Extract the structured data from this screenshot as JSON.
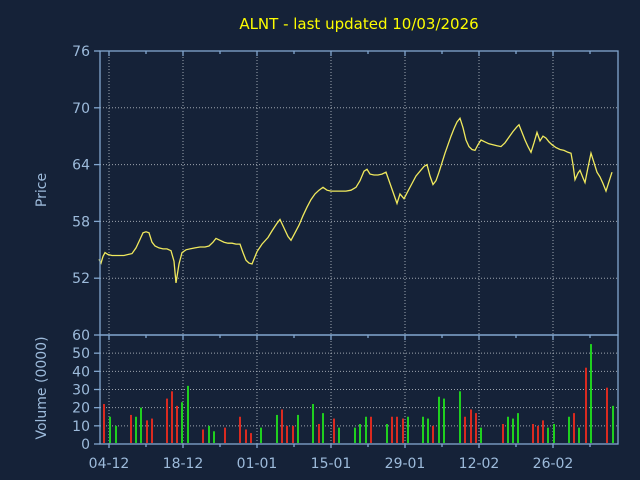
{
  "title": {
    "text": "ALNT - last updated 10/03/2026"
  },
  "colors": {
    "background": "#152238",
    "axis": "#82a7cf",
    "grid": "#b5bcc4",
    "tick_label": "#9dbbdb",
    "title": "#fdfd00",
    "price_line": "#f0e95d",
    "volume_up": "#1fcf1f",
    "volume_down": "#da2a20"
  },
  "chart_data": [
    {
      "type": "line",
      "panel": "price",
      "title": "ALNT - last updated 10/03/2026",
      "ylabel": "Price",
      "yticks": [
        76,
        70,
        64,
        58,
        52
      ],
      "ylim": [
        46,
        76
      ],
      "grid": true,
      "xtick_labels": [
        "04-12",
        "18-12",
        "01-01",
        "15-01",
        "29-01",
        "12-02",
        "26-02"
      ],
      "series": [
        {
          "name": "ALNT close price",
          "points": [
            [
              99,
              54.0
            ],
            [
              101,
              53.6
            ],
            [
              103,
              54.3
            ],
            [
              105,
              54.7
            ],
            [
              108,
              54.5
            ],
            [
              112,
              54.4
            ],
            [
              116,
              54.4
            ],
            [
              120,
              54.4
            ],
            [
              124,
              54.4
            ],
            [
              128,
              54.5
            ],
            [
              132,
              54.6
            ],
            [
              136,
              55.2
            ],
            [
              140,
              56.1
            ],
            [
              143,
              56.8
            ],
            [
              146,
              56.9
            ],
            [
              149,
              56.8
            ],
            [
              152,
              55.8
            ],
            [
              155,
              55.4
            ],
            [
              159,
              55.2
            ],
            [
              163,
              55.1
            ],
            [
              167,
              55.1
            ],
            [
              171,
              54.9
            ],
            [
              174,
              53.8
            ],
            [
              176,
              51.5
            ],
            [
              179,
              53.5
            ],
            [
              182,
              54.7
            ],
            [
              186,
              55.0
            ],
            [
              190,
              55.1
            ],
            [
              195,
              55.2
            ],
            [
              200,
              55.3
            ],
            [
              205,
              55.3
            ],
            [
              209,
              55.4
            ],
            [
              213,
              55.8
            ],
            [
              216,
              56.2
            ],
            [
              220,
              56.0
            ],
            [
              224,
              55.8
            ],
            [
              228,
              55.7
            ],
            [
              232,
              55.7
            ],
            [
              236,
              55.6
            ],
            [
              240,
              55.6
            ],
            [
              243,
              54.7
            ],
            [
              246,
              53.9
            ],
            [
              249,
              53.6
            ],
            [
              252,
              53.5
            ],
            [
              257,
              54.8
            ],
            [
              262,
              55.6
            ],
            [
              268,
              56.3
            ],
            [
              272,
              57.0
            ],
            [
              277,
              57.8
            ],
            [
              280,
              58.2
            ],
            [
              284,
              57.3
            ],
            [
              288,
              56.4
            ],
            [
              291,
              56.0
            ],
            [
              295,
              56.8
            ],
            [
              299,
              57.6
            ],
            [
              303,
              58.6
            ],
            [
              307,
              59.5
            ],
            [
              311,
              60.3
            ],
            [
              315,
              60.9
            ],
            [
              319,
              61.3
            ],
            [
              323,
              61.6
            ],
            [
              327,
              61.3
            ],
            [
              331,
              61.2
            ],
            [
              336,
              61.2
            ],
            [
              341,
              61.2
            ],
            [
              346,
              61.2
            ],
            [
              351,
              61.3
            ],
            [
              356,
              61.6
            ],
            [
              360,
              62.3
            ],
            [
              364,
              63.3
            ],
            [
              367,
              63.5
            ],
            [
              370,
              63.0
            ],
            [
              374,
              62.9
            ],
            [
              378,
              62.9
            ],
            [
              382,
              63.0
            ],
            [
              386,
              63.2
            ],
            [
              390,
              62.0
            ],
            [
              394,
              60.8
            ],
            [
              397,
              59.9
            ],
            [
              400,
              60.9
            ],
            [
              404,
              60.4
            ],
            [
              408,
              61.2
            ],
            [
              412,
              62.0
            ],
            [
              416,
              62.8
            ],
            [
              420,
              63.3
            ],
            [
              424,
              63.8
            ],
            [
              427,
              64.0
            ],
            [
              430,
              62.8
            ],
            [
              433,
              61.9
            ],
            [
              436,
              62.3
            ],
            [
              439,
              63.2
            ],
            [
              442,
              64.2
            ],
            [
              445,
              65.2
            ],
            [
              448,
              66.1
            ],
            [
              451,
              67.0
            ],
            [
              454,
              67.8
            ],
            [
              457,
              68.5
            ],
            [
              460,
              68.9
            ],
            [
              463,
              67.9
            ],
            [
              466,
              66.6
            ],
            [
              469,
              65.9
            ],
            [
              472,
              65.6
            ],
            [
              475,
              65.5
            ],
            [
              478,
              66.1
            ],
            [
              481,
              66.6
            ],
            [
              485,
              66.4
            ],
            [
              489,
              66.2
            ],
            [
              493,
              66.1
            ],
            [
              497,
              66.0
            ],
            [
              501,
              65.9
            ],
            [
              505,
              66.3
            ],
            [
              509,
              66.9
            ],
            [
              513,
              67.5
            ],
            [
              517,
              68.0
            ],
            [
              519,
              68.2
            ],
            [
              522,
              67.4
            ],
            [
              525,
              66.6
            ],
            [
              528,
              65.9
            ],
            [
              531,
              65.3
            ],
            [
              534,
              66.3
            ],
            [
              537,
              67.4
            ],
            [
              540,
              66.5
            ],
            [
              543,
              67.0
            ],
            [
              546,
              66.8
            ],
            [
              549,
              66.4
            ],
            [
              552,
              66.1
            ],
            [
              556,
              65.8
            ],
            [
              560,
              65.6
            ],
            [
              564,
              65.5
            ],
            [
              568,
              65.3
            ],
            [
              571,
              65.2
            ],
            [
              573,
              64.0
            ],
            [
              575,
              62.4
            ],
            [
              578,
              63.1
            ],
            [
              580,
              63.4
            ],
            [
              583,
              62.6
            ],
            [
              585,
              62.1
            ],
            [
              588,
              63.7
            ],
            [
              591,
              65.2
            ],
            [
              594,
              64.2
            ],
            [
              597,
              63.2
            ],
            [
              600,
              62.7
            ],
            [
              603,
              62.0
            ],
            [
              606,
              61.2
            ],
            [
              609,
              62.2
            ],
            [
              612,
              63.2
            ]
          ]
        }
      ]
    },
    {
      "type": "bar",
      "panel": "volume",
      "ylabel": "Volume (0000)",
      "yticks": [
        60,
        50,
        40,
        30,
        20,
        10,
        0
      ],
      "ylim": [
        0,
        60
      ],
      "grid": true,
      "up_color": "#1fcf1f",
      "down_color": "#da2a20",
      "bars": [
        [
          104,
          22,
          "d"
        ],
        [
          110,
          15,
          "u"
        ],
        [
          116,
          10,
          "u"
        ],
        [
          131,
          16,
          "d"
        ],
        [
          136,
          15,
          "u"
        ],
        [
          141,
          20,
          "u"
        ],
        [
          147,
          13,
          "d"
        ],
        [
          152,
          14,
          "d"
        ],
        [
          167,
          25,
          "d"
        ],
        [
          172,
          29,
          "d"
        ],
        [
          177,
          21,
          "d"
        ],
        [
          182,
          23,
          "u"
        ],
        [
          188,
          32,
          "u"
        ],
        [
          203,
          8,
          "d"
        ],
        [
          209,
          10,
          "u"
        ],
        [
          214,
          7,
          "u"
        ],
        [
          225,
          9,
          "d"
        ],
        [
          240,
          15,
          "d"
        ],
        [
          246,
          8,
          "d"
        ],
        [
          251,
          6,
          "d"
        ],
        [
          261,
          9,
          "u"
        ],
        [
          277,
          16,
          "u"
        ],
        [
          282,
          19,
          "d"
        ],
        [
          287,
          10,
          "d"
        ],
        [
          293,
          10,
          "d"
        ],
        [
          298,
          16,
          "u"
        ],
        [
          313,
          22,
          "u"
        ],
        [
          319,
          11,
          "d"
        ],
        [
          323,
          17,
          "u"
        ],
        [
          334,
          14,
          "d"
        ],
        [
          339,
          9,
          "u"
        ],
        [
          355,
          9,
          "u"
        ],
        [
          360,
          11,
          "u"
        ],
        [
          366,
          15,
          "u"
        ],
        [
          371,
          15,
          "d"
        ],
        [
          387,
          11,
          "u"
        ],
        [
          392,
          15,
          "d"
        ],
        [
          397,
          15,
          "d"
        ],
        [
          403,
          14,
          "d"
        ],
        [
          408,
          15,
          "u"
        ],
        [
          423,
          15,
          "u"
        ],
        [
          428,
          14,
          "u"
        ],
        [
          433,
          10,
          "d"
        ],
        [
          439,
          26,
          "u"
        ],
        [
          444,
          25,
          "u"
        ],
        [
          460,
          29,
          "u"
        ],
        [
          465,
          15,
          "d"
        ],
        [
          471,
          19,
          "d"
        ],
        [
          476,
          17,
          "d"
        ],
        [
          481,
          9,
          "u"
        ],
        [
          503,
          11,
          "d"
        ],
        [
          508,
          15,
          "u"
        ],
        [
          513,
          14,
          "u"
        ],
        [
          518,
          17,
          "u"
        ],
        [
          533,
          11,
          "d"
        ],
        [
          538,
          10,
          "d"
        ],
        [
          543,
          13,
          "d"
        ],
        [
          548,
          9,
          "u"
        ],
        [
          554,
          11,
          "u"
        ],
        [
          569,
          15,
          "u"
        ],
        [
          574,
          17,
          "d"
        ],
        [
          579,
          9,
          "u"
        ],
        [
          586,
          42,
          "d"
        ],
        [
          591,
          55,
          "u"
        ],
        [
          607,
          31,
          "d"
        ],
        [
          613,
          21,
          "u"
        ]
      ]
    }
  ]
}
